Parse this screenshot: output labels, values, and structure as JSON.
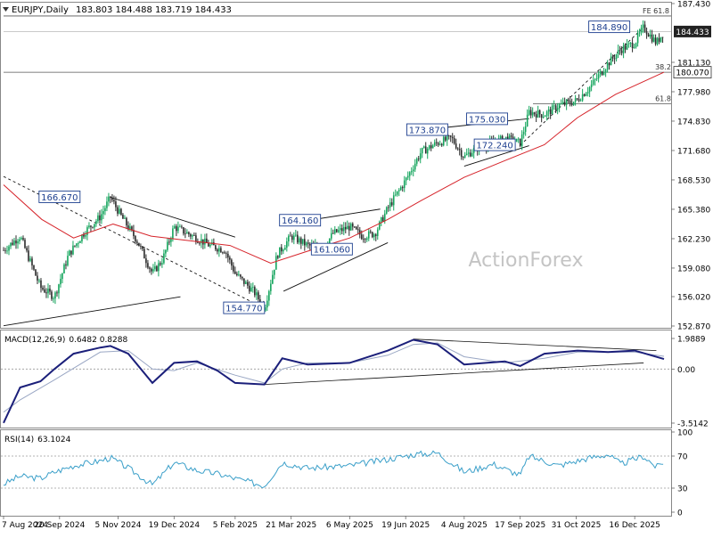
{
  "header": {
    "symbol": "EURJPY",
    "timeframe": "Daily",
    "ohlc": "183.803 184.488 183.719 184.433"
  },
  "watermark": "ActionForex",
  "colors": {
    "candle_up": "#15a55d",
    "candle_down": "#2b2b2b",
    "ma": "#d6232a",
    "macd": "#1b1f7a",
    "signal": "#9aa7c4",
    "rsi": "#3a9fc9",
    "trendline": "#111111",
    "price_tag_bg": "#222222"
  },
  "chart_data": [
    {
      "type": "candlestick",
      "panel": "price",
      "title": "EURJPY,Daily",
      "x_axis_labels": [
        "7 Aug 2024",
        "20 Sep 2024",
        "5 Nov 2024",
        "19 Dec 2024",
        "5 Feb 2025",
        "21 Mar 2025",
        "6 May 2025",
        "19 Jun 2025",
        "4 Aug 2025",
        "17 Sep 2025",
        "31 Oct 2025",
        "16 Dec 2025"
      ],
      "y_axis_labels": [
        "187.430",
        "184.433",
        "181.130",
        "180.070",
        "177.980",
        "174.830",
        "171.680",
        "168.530",
        "165.380",
        "162.230",
        "159.080",
        "156.020",
        "152.870"
      ],
      "ylim": [
        152.87,
        187.43
      ],
      "last_price": "184.433",
      "ma_line_value": "180.070",
      "price_annotations": [
        "166.670",
        "164.160",
        "161.060",
        "154.770",
        "173.870",
        "175.030",
        "172.240",
        "184.890"
      ],
      "fib_labels": [
        "FE 61.8",
        "38.2",
        "61.8"
      ],
      "close_series": [
        {
          "date": "2024-08-07",
          "close": 161.0
        },
        {
          "date": "2024-08-20",
          "close": 162.5
        },
        {
          "date": "2024-09-05",
          "close": 157.0
        },
        {
          "date": "2024-09-16",
          "close": 156.0
        },
        {
          "date": "2024-09-27",
          "close": 160.5
        },
        {
          "date": "2024-10-10",
          "close": 163.0
        },
        {
          "date": "2024-10-22",
          "close": 164.6
        },
        {
          "date": "2024-10-30",
          "close": 166.67
        },
        {
          "date": "2024-11-08",
          "close": 164.5
        },
        {
          "date": "2024-11-20",
          "close": 162.0
        },
        {
          "date": "2024-12-02",
          "close": 158.5
        },
        {
          "date": "2024-12-10",
          "close": 160.0
        },
        {
          "date": "2024-12-19",
          "close": 163.5
        },
        {
          "date": "2025-01-03",
          "close": 162.5
        },
        {
          "date": "2025-01-16",
          "close": 161.5
        },
        {
          "date": "2025-01-28",
          "close": 161.0
        },
        {
          "date": "2025-02-05",
          "close": 158.5
        },
        {
          "date": "2025-02-20",
          "close": 156.5
        },
        {
          "date": "2025-02-28",
          "close": 154.77
        },
        {
          "date": "2025-03-10",
          "close": 160.5
        },
        {
          "date": "2025-03-21",
          "close": 162.5
        },
        {
          "date": "2025-04-03",
          "close": 161.5
        },
        {
          "date": "2025-04-15",
          "close": 161.2
        },
        {
          "date": "2025-04-23",
          "close": 162.8
        },
        {
          "date": "2025-05-06",
          "close": 163.5
        },
        {
          "date": "2025-05-16",
          "close": 162.5
        },
        {
          "date": "2025-05-26",
          "close": 162.8
        },
        {
          "date": "2025-06-05",
          "close": 165.5
        },
        {
          "date": "2025-06-19",
          "close": 168.5
        },
        {
          "date": "2025-07-01",
          "close": 171.5
        },
        {
          "date": "2025-07-14",
          "close": 172.5
        },
        {
          "date": "2025-07-25",
          "close": 173.0
        },
        {
          "date": "2025-08-04",
          "close": 171.0
        },
        {
          "date": "2025-08-14",
          "close": 172.0
        },
        {
          "date": "2025-08-27",
          "close": 172.5
        },
        {
          "date": "2025-09-05",
          "close": 173.0
        },
        {
          "date": "2025-09-17",
          "close": 172.5
        },
        {
          "date": "2025-09-24",
          "close": 175.8
        },
        {
          "date": "2025-10-06",
          "close": 175.5
        },
        {
          "date": "2025-10-17",
          "close": 176.5
        },
        {
          "date": "2025-10-31",
          "close": 177.0
        },
        {
          "date": "2025-11-11",
          "close": 178.5
        },
        {
          "date": "2025-11-25",
          "close": 181.0
        },
        {
          "date": "2025-12-05",
          "close": 182.5
        },
        {
          "date": "2025-12-16",
          "close": 183.2
        },
        {
          "date": "2025-12-23",
          "close": 184.89
        },
        {
          "date": "2026-01-02",
          "close": 183.2
        },
        {
          "date": "2026-01-08",
          "close": 184.433
        }
      ],
      "ma_series": [
        {
          "date": "2024-08-07",
          "close": 168.0
        },
        {
          "date": "2024-09-06",
          "close": 164.3
        },
        {
          "date": "2024-10-01",
          "close": 162.3
        },
        {
          "date": "2024-11-01",
          "close": 163.8
        },
        {
          "date": "2024-12-01",
          "close": 162.5
        },
        {
          "date": "2025-01-01",
          "close": 162.0
        },
        {
          "date": "2025-02-01",
          "close": 161.5
        },
        {
          "date": "2025-03-05",
          "close": 159.6
        },
        {
          "date": "2025-04-01",
          "close": 160.8
        },
        {
          "date": "2025-05-06",
          "close": 162.3
        },
        {
          "date": "2025-06-05",
          "close": 164.3
        },
        {
          "date": "2025-07-01",
          "close": 166.3
        },
        {
          "date": "2025-08-04",
          "close": 168.8
        },
        {
          "date": "2025-09-05",
          "close": 170.6
        },
        {
          "date": "2025-10-06",
          "close": 172.3
        },
        {
          "date": "2025-11-01",
          "close": 175.2
        },
        {
          "date": "2025-12-01",
          "close": 177.7
        },
        {
          "date": "2026-01-08",
          "close": 180.07
        }
      ]
    },
    {
      "type": "line",
      "panel": "macd",
      "title": "MACD(12,26,9)",
      "values_text": "0.6482 0.8288",
      "y_axis_labels": [
        "1.9889",
        "0.00",
        "-3.5142"
      ],
      "ylim": [
        -3.5142,
        1.9889
      ],
      "series": [
        {
          "name": "MACD",
          "points": [
            {
              "date": "2024-08-07",
              "value": -3.5
            },
            {
              "date": "2024-08-20",
              "value": -1.2
            },
            {
              "date": "2024-09-05",
              "value": -0.8
            },
            {
              "date": "2024-09-16",
              "value": 0.0
            },
            {
              "date": "2024-10-01",
              "value": 1.0
            },
            {
              "date": "2024-10-22",
              "value": 1.4
            },
            {
              "date": "2024-10-30",
              "value": 1.5
            },
            {
              "date": "2024-11-13",
              "value": 1.0
            },
            {
              "date": "2024-12-02",
              "value": -0.9
            },
            {
              "date": "2024-12-19",
              "value": 0.4
            },
            {
              "date": "2025-01-06",
              "value": 0.5
            },
            {
              "date": "2025-01-22",
              "value": -0.1
            },
            {
              "date": "2025-02-05",
              "value": -0.9
            },
            {
              "date": "2025-02-28",
              "value": -1.0
            },
            {
              "date": "2025-03-14",
              "value": 0.7
            },
            {
              "date": "2025-04-03",
              "value": 0.3
            },
            {
              "date": "2025-05-06",
              "value": 0.4
            },
            {
              "date": "2025-06-05",
              "value": 1.2
            },
            {
              "date": "2025-06-25",
              "value": 1.9
            },
            {
              "date": "2025-07-14",
              "value": 1.6
            },
            {
              "date": "2025-08-04",
              "value": 0.3
            },
            {
              "date": "2025-09-05",
              "value": 0.5
            },
            {
              "date": "2025-09-17",
              "value": 0.2
            },
            {
              "date": "2025-10-06",
              "value": 1.0
            },
            {
              "date": "2025-11-01",
              "value": 1.2
            },
            {
              "date": "2025-11-25",
              "value": 1.1
            },
            {
              "date": "2025-12-16",
              "value": 1.2
            },
            {
              "date": "2026-01-08",
              "value": 0.65
            }
          ]
        },
        {
          "name": "Signal",
          "points": [
            {
              "date": "2024-08-07",
              "value": -2.8
            },
            {
              "date": "2024-08-20",
              "value": -2.0
            },
            {
              "date": "2024-09-16",
              "value": -0.7
            },
            {
              "date": "2024-10-22",
              "value": 1.1
            },
            {
              "date": "2024-11-13",
              "value": 1.2
            },
            {
              "date": "2024-12-02",
              "value": 0.0
            },
            {
              "date": "2024-12-19",
              "value": -0.1
            },
            {
              "date": "2025-01-06",
              "value": 0.4
            },
            {
              "date": "2025-02-05",
              "value": -0.4
            },
            {
              "date": "2025-02-28",
              "value": -0.9
            },
            {
              "date": "2025-03-14",
              "value": 0.0
            },
            {
              "date": "2025-04-03",
              "value": 0.4
            },
            {
              "date": "2025-05-06",
              "value": 0.4
            },
            {
              "date": "2025-06-05",
              "value": 0.9
            },
            {
              "date": "2025-06-25",
              "value": 1.6
            },
            {
              "date": "2025-07-14",
              "value": 1.7
            },
            {
              "date": "2025-08-04",
              "value": 0.8
            },
            {
              "date": "2025-09-05",
              "value": 0.4
            },
            {
              "date": "2025-10-06",
              "value": 0.7
            },
            {
              "date": "2025-11-01",
              "value": 1.1
            },
            {
              "date": "2025-12-16",
              "value": 1.1
            },
            {
              "date": "2026-01-08",
              "value": 0.83
            }
          ]
        }
      ]
    },
    {
      "type": "line",
      "panel": "rsi",
      "title": "RSI(14)",
      "values_text": "63.1024",
      "y_axis_labels": [
        "100",
        "70",
        "30",
        "0"
      ],
      "ylim": [
        0,
        100
      ],
      "series": [
        {
          "name": "RSI",
          "points": [
            {
              "date": "2024-08-07",
              "value": 35
            },
            {
              "date": "2024-08-20",
              "value": 45
            },
            {
              "date": "2024-09-05",
              "value": 42
            },
            {
              "date": "2024-09-16",
              "value": 50
            },
            {
              "date": "2024-10-01",
              "value": 58
            },
            {
              "date": "2024-10-22",
              "value": 64
            },
            {
              "date": "2024-10-30",
              "value": 68
            },
            {
              "date": "2024-11-13",
              "value": 55
            },
            {
              "date": "2024-12-02",
              "value": 34
            },
            {
              "date": "2024-12-19",
              "value": 62
            },
            {
              "date": "2025-01-06",
              "value": 52
            },
            {
              "date": "2025-01-22",
              "value": 48
            },
            {
              "date": "2025-02-05",
              "value": 42
            },
            {
              "date": "2025-02-28",
              "value": 33
            },
            {
              "date": "2025-03-14",
              "value": 62
            },
            {
              "date": "2025-04-03",
              "value": 55
            },
            {
              "date": "2025-05-06",
              "value": 58
            },
            {
              "date": "2025-06-05",
              "value": 66
            },
            {
              "date": "2025-06-25",
              "value": 72
            },
            {
              "date": "2025-07-14",
              "value": 74
            },
            {
              "date": "2025-08-04",
              "value": 50
            },
            {
              "date": "2025-08-27",
              "value": 60
            },
            {
              "date": "2025-09-17",
              "value": 46
            },
            {
              "date": "2025-09-24",
              "value": 70
            },
            {
              "date": "2025-10-17",
              "value": 58
            },
            {
              "date": "2025-11-11",
              "value": 68
            },
            {
              "date": "2025-11-25",
              "value": 72
            },
            {
              "date": "2025-12-05",
              "value": 60
            },
            {
              "date": "2025-12-23",
              "value": 70
            },
            {
              "date": "2026-01-02",
              "value": 56
            },
            {
              "date": "2026-01-08",
              "value": 63.1
            }
          ]
        }
      ]
    }
  ]
}
